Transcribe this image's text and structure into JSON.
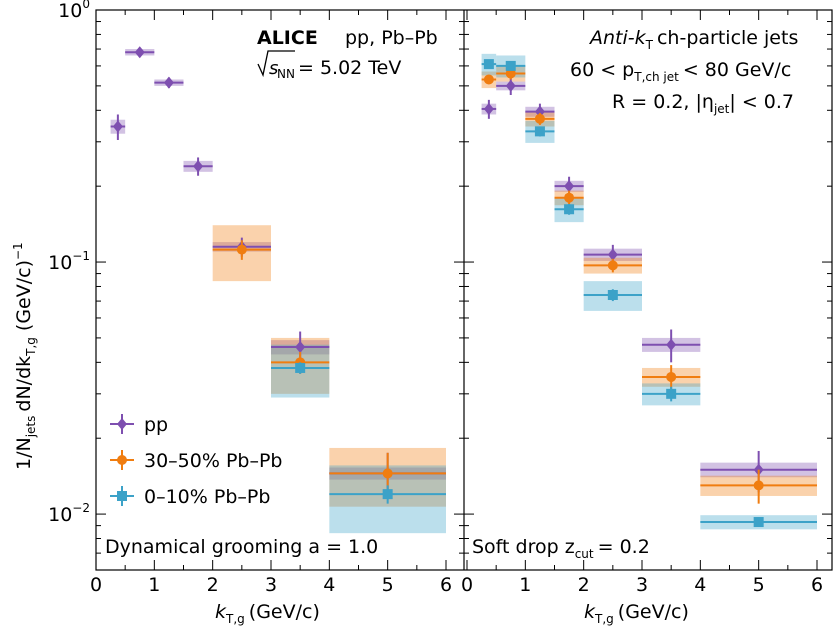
{
  "figure": {
    "experiment": "ALICE",
    "systems": "pp, Pb–Pb",
    "energy_label": "= 5.02 TeV",
    "jet_label": "Anti-k",
    "jet_label_rest": "ch-particle jets",
    "pt_range_label": "60 < p",
    "pt_range_rest": "< 80 GeV/c",
    "radius_label": "R = 0.2, |η",
    "radius_rest": "| < 0.7",
    "ylabel": "1/N",
    "ylabel_rest": "dN/dk",
    "ylabel_unit": "(GeV/c)",
    "xlabel": "k",
    "xlabel_sub": "T,g",
    "xlabel_unit": "(GeV/c)",
    "legend_placement": "bottom-left"
  },
  "colors": {
    "pp": "#7e4fb0",
    "pbpb_3050": "#f07d10",
    "pbpb_010": "#3ca2c8"
  },
  "chart_data": [
    {
      "type": "scatter",
      "panel": "left",
      "annotation": "Dynamical grooming a = 1.0",
      "xlim": [
        0,
        6
      ],
      "ylim": [
        0.006,
        1.0
      ],
      "yscale": "log",
      "x_ticks": [
        "0",
        "1",
        "2",
        "3",
        "4",
        "5",
        "6"
      ],
      "y_ticks": [
        "10^0",
        "10^-1",
        "10^-2"
      ],
      "series": [
        {
          "name": "pp",
          "marker": "diamond",
          "points": [
            {
              "x": 0.375,
              "xlo": 0.25,
              "xhi": 0.5,
              "y": 0.345,
              "stat": 0.04,
              "sys": 0.022
            },
            {
              "x": 0.75,
              "xlo": 0.5,
              "xhi": 1.0,
              "y": 0.68,
              "stat": 0.03,
              "sys": 0.02
            },
            {
              "x": 1.25,
              "xlo": 1.0,
              "xhi": 1.5,
              "y": 0.515,
              "stat": 0.025,
              "sys": 0.015
            },
            {
              "x": 1.75,
              "xlo": 1.5,
              "xhi": 2.0,
              "y": 0.24,
              "stat": 0.02,
              "sys": 0.012
            },
            {
              "x": 2.5,
              "xlo": 2.0,
              "xhi": 3.0,
              "y": 0.115,
              "stat": 0.01,
              "sys": 0.005
            },
            {
              "x": 3.5,
              "xlo": 3.0,
              "xhi": 4.0,
              "y": 0.046,
              "stat": 0.007,
              "sys": 0.003
            },
            {
              "x": 5.0,
              "xlo": 4.0,
              "xhi": 6.0,
              "y": 0.0145,
              "stat": 0.003,
              "sys": 0.0008
            }
          ]
        },
        {
          "name": "30–50% Pb–Pb",
          "marker": "circle",
          "points": [
            {
              "x": 2.5,
              "xlo": 2.0,
              "xhi": 3.0,
              "y": 0.112,
              "stat": 0.01,
              "sys": 0.028
            },
            {
              "x": 3.5,
              "xlo": 3.0,
              "xhi": 4.0,
              "y": 0.04,
              "stat": 0.004,
              "sys": 0.01
            },
            {
              "x": 5.0,
              "xlo": 4.0,
              "xhi": 6.0,
              "y": 0.0145,
              "stat": 0.003,
              "sys": 0.0038
            }
          ]
        },
        {
          "name": "0–10% Pb–Pb",
          "marker": "square",
          "points": [
            {
              "x": 3.5,
              "xlo": 3.0,
              "xhi": 4.0,
              "y": 0.038,
              "stat": 0.002,
              "sys": 0.009
            },
            {
              "x": 5.0,
              "xlo": 4.0,
              "xhi": 6.0,
              "y": 0.012,
              "stat": 0.001,
              "sys": 0.0036
            }
          ]
        }
      ]
    },
    {
      "type": "scatter",
      "panel": "right",
      "annotation": "Soft drop z",
      "annotation_rest": "= 0.2",
      "xlim": [
        0,
        6
      ],
      "ylim": [
        0.006,
        1.0
      ],
      "yscale": "log",
      "x_ticks": [
        "0",
        "1",
        "2",
        "3",
        "4",
        "5",
        "6"
      ],
      "series": [
        {
          "name": "pp",
          "marker": "diamond",
          "points": [
            {
              "x": 0.375,
              "xlo": 0.25,
              "xhi": 0.5,
              "y": 0.405,
              "stat": 0.035,
              "sys": 0.02
            },
            {
              "x": 0.75,
              "xlo": 0.5,
              "xhi": 1.0,
              "y": 0.5,
              "stat": 0.04,
              "sys": 0.02
            },
            {
              "x": 1.25,
              "xlo": 1.0,
              "xhi": 1.5,
              "y": 0.395,
              "stat": 0.03,
              "sys": 0.018
            },
            {
              "x": 1.75,
              "xlo": 1.5,
              "xhi": 2.0,
              "y": 0.2,
              "stat": 0.018,
              "sys": 0.01
            },
            {
              "x": 2.5,
              "xlo": 2.0,
              "xhi": 3.0,
              "y": 0.107,
              "stat": 0.01,
              "sys": 0.006
            },
            {
              "x": 3.5,
              "xlo": 3.0,
              "xhi": 4.0,
              "y": 0.047,
              "stat": 0.007,
              "sys": 0.003
            },
            {
              "x": 5.0,
              "xlo": 4.0,
              "xhi": 6.0,
              "y": 0.015,
              "stat": 0.0028,
              "sys": 0.001
            }
          ]
        },
        {
          "name": "30–50% Pb–Pb",
          "marker": "circle",
          "points": [
            {
              "x": 0.375,
              "xlo": 0.25,
              "xhi": 0.5,
              "y": 0.53,
              "stat": 0.02,
              "sys": 0.04
            },
            {
              "x": 0.75,
              "xlo": 0.5,
              "xhi": 1.0,
              "y": 0.56,
              "stat": 0.03,
              "sys": 0.04
            },
            {
              "x": 1.25,
              "xlo": 1.0,
              "xhi": 1.5,
              "y": 0.37,
              "stat": 0.02,
              "sys": 0.025
            },
            {
              "x": 1.75,
              "xlo": 1.5,
              "xhi": 2.0,
              "y": 0.18,
              "stat": 0.012,
              "sys": 0.012
            },
            {
              "x": 2.5,
              "xlo": 2.0,
              "xhi": 3.0,
              "y": 0.097,
              "stat": 0.006,
              "sys": 0.007
            },
            {
              "x": 3.5,
              "xlo": 3.0,
              "xhi": 4.0,
              "y": 0.035,
              "stat": 0.004,
              "sys": 0.003
            },
            {
              "x": 5.0,
              "xlo": 4.0,
              "xhi": 6.0,
              "y": 0.013,
              "stat": 0.002,
              "sys": 0.0012
            }
          ]
        },
        {
          "name": "0–10% Pb–Pb",
          "marker": "square",
          "points": [
            {
              "x": 0.375,
              "xlo": 0.25,
              "xhi": 0.5,
              "y": 0.61,
              "stat": 0.02,
              "sys": 0.06
            },
            {
              "x": 0.75,
              "xlo": 0.5,
              "xhi": 1.0,
              "y": 0.6,
              "stat": 0.02,
              "sys": 0.06
            },
            {
              "x": 1.25,
              "xlo": 1.0,
              "xhi": 1.5,
              "y": 0.33,
              "stat": 0.015,
              "sys": 0.033
            },
            {
              "x": 1.75,
              "xlo": 1.5,
              "xhi": 2.0,
              "y": 0.162,
              "stat": 0.008,
              "sys": 0.018
            },
            {
              "x": 2.5,
              "xlo": 2.0,
              "xhi": 3.0,
              "y": 0.074,
              "stat": 0.004,
              "sys": 0.01
            },
            {
              "x": 3.5,
              "xlo": 3.0,
              "xhi": 4.0,
              "y": 0.03,
              "stat": 0.002,
              "sys": 0.003
            },
            {
              "x": 5.0,
              "xlo": 4.0,
              "xhi": 6.0,
              "y": 0.0093,
              "stat": 0.0004,
              "sys": 0.0006
            }
          ]
        }
      ]
    }
  ]
}
